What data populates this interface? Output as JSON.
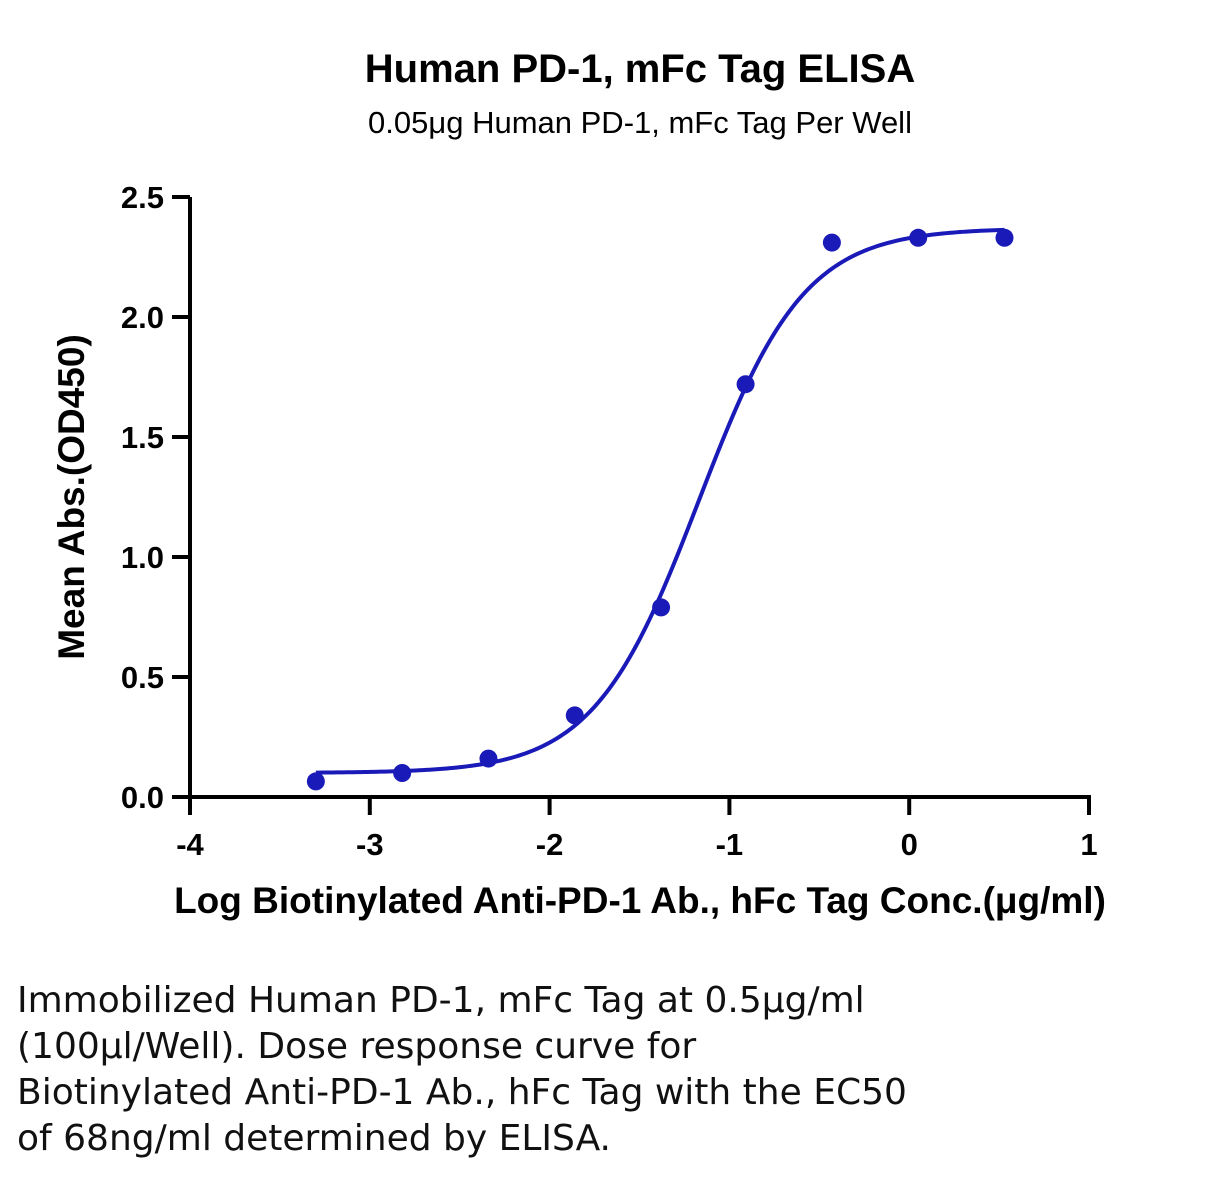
{
  "chart_data": {
    "type": "scatter",
    "title": "Human PD-1, mFc Tag ELISA",
    "subtitle": "0.05μg Human PD-1, mFc Tag Per Well",
    "xlabel": "Log Biotinylated Anti-PD-1 Ab., hFc Tag Conc.(μg/ml)",
    "ylabel": "Mean Abs.(OD450)",
    "xlim": [
      -4,
      1
    ],
    "ylim": [
      0,
      2.5
    ],
    "xticks": [
      "-4",
      "-3",
      "-2",
      "-1",
      "0",
      "1"
    ],
    "yticks": [
      "0.0",
      "0.5",
      "1.0",
      "1.5",
      "2.0",
      "2.5"
    ],
    "grid": false,
    "series": [
      {
        "points": [
          {
            "x": -3.3,
            "y": 0.065
          },
          {
            "x": -2.82,
            "y": 0.1
          },
          {
            "x": -2.34,
            "y": 0.16
          },
          {
            "x": -1.86,
            "y": 0.34
          },
          {
            "x": -1.38,
            "y": 0.79
          },
          {
            "x": -0.91,
            "y": 1.72
          },
          {
            "x": -0.43,
            "y": 2.31
          },
          {
            "x": 0.05,
            "y": 2.33
          },
          {
            "x": 0.53,
            "y": 2.33
          }
        ],
        "fit": {
          "bottom": 0.1,
          "top": 2.37,
          "log_ec50": -1.17,
          "hill_slope": 1.48,
          "x_range": [
            -3.3,
            0.53
          ]
        }
      }
    ],
    "colors": {
      "series": "#1a1ab8",
      "axis": "#000000"
    }
  },
  "caption": {
    "lines": [
      "Immobilized Human PD-1, mFc Tag at 0.5μg/ml",
      "(100μl/Well). Dose response curve for",
      "Biotinylated Anti-PD-1 Ab., hFc Tag with the EC50",
      "of 68ng/ml determined by ELISA."
    ]
  }
}
